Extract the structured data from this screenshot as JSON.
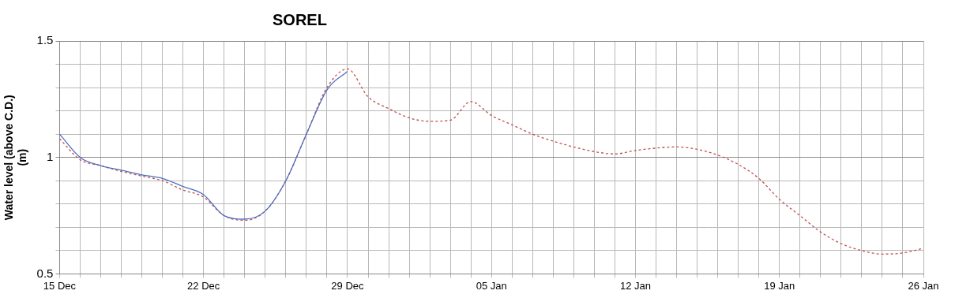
{
  "chart_data": {
    "type": "line",
    "title": "SOREL",
    "ylabel": [
      "Water level (above C.D.)",
      "(m)"
    ],
    "categories": [
      "15 Dec",
      null,
      null,
      null,
      null,
      null,
      null,
      "22 Dec",
      null,
      null,
      null,
      null,
      null,
      null,
      "29 Dec",
      null,
      null,
      null,
      null,
      null,
      null,
      "05 Jan",
      null,
      null,
      null,
      null,
      null,
      null,
      "12 Jan",
      null,
      null,
      null,
      null,
      null,
      null,
      "19 Jan",
      null,
      null,
      null,
      null,
      null,
      null,
      "26 Jan"
    ],
    "series": [
      {
        "color": "#4f6fc0",
        "line_style": "solid",
        "values": [
          1.1,
          1.0,
          0.965,
          0.945,
          0.925,
          0.91,
          0.875,
          0.84,
          0.75,
          0.735,
          0.77,
          0.9,
          1.1,
          1.29,
          1.37,
          null,
          null,
          null,
          null,
          null,
          null,
          null,
          null,
          null,
          null,
          null,
          null,
          null,
          null,
          null,
          null,
          null,
          null,
          null,
          null,
          null,
          null,
          null,
          null,
          null,
          null,
          null,
          null
        ]
      },
      {
        "color": "#c0504d",
        "line_style": "dashed",
        "values": [
          1.08,
          0.99,
          0.965,
          0.94,
          0.92,
          0.9,
          0.86,
          0.83,
          0.75,
          0.73,
          0.77,
          0.9,
          1.1,
          1.3,
          1.38,
          1.26,
          1.21,
          1.17,
          1.155,
          1.16,
          1.24,
          1.18,
          1.14,
          1.1,
          1.07,
          1.045,
          1.025,
          1.015,
          1.03,
          1.04,
          1.045,
          1.035,
          1.01,
          0.97,
          0.91,
          0.82,
          0.75,
          0.68,
          0.63,
          0.6,
          0.585,
          0.59,
          0.61
        ]
      }
    ],
    "ylim": [
      0.5,
      1.5
    ],
    "yticks": [
      0.5,
      1,
      1.5
    ],
    "grid": true
  }
}
